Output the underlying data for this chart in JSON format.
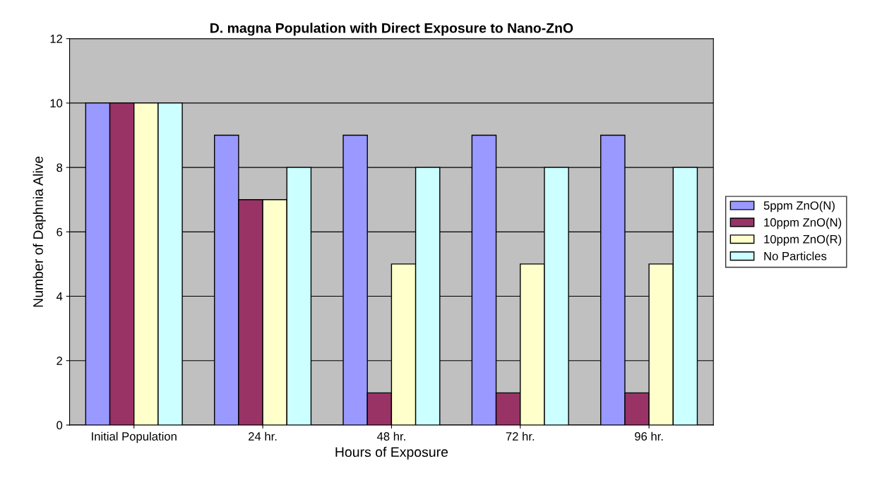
{
  "chart_data": {
    "type": "bar",
    "title": "D. magna Population with Direct Exposure to Nano-ZnO",
    "xlabel": "Hours of Exposure",
    "ylabel": "Number of Daphnia Alive",
    "categories": [
      "Initial Population",
      "24 hr.",
      "48 hr.",
      "72 hr.",
      "96 hr."
    ],
    "series": [
      {
        "name": "5ppm ZnO(N)",
        "color": "#9999ff",
        "values": [
          10,
          9,
          9,
          9,
          9
        ]
      },
      {
        "name": "10ppm ZnO(N)",
        "color": "#993366",
        "values": [
          10,
          7,
          1,
          1,
          1
        ]
      },
      {
        "name": "10ppm ZnO(R)",
        "color": "#ffffcc",
        "values": [
          10,
          7,
          5,
          5,
          5
        ]
      },
      {
        "name": "No Particles",
        "color": "#ccffff",
        "values": [
          10,
          8,
          8,
          8,
          8
        ]
      }
    ],
    "ylim": [
      0,
      12
    ],
    "yticks": [
      0,
      2,
      4,
      6,
      8,
      10,
      12
    ],
    "grid": "y",
    "legend": "right"
  }
}
